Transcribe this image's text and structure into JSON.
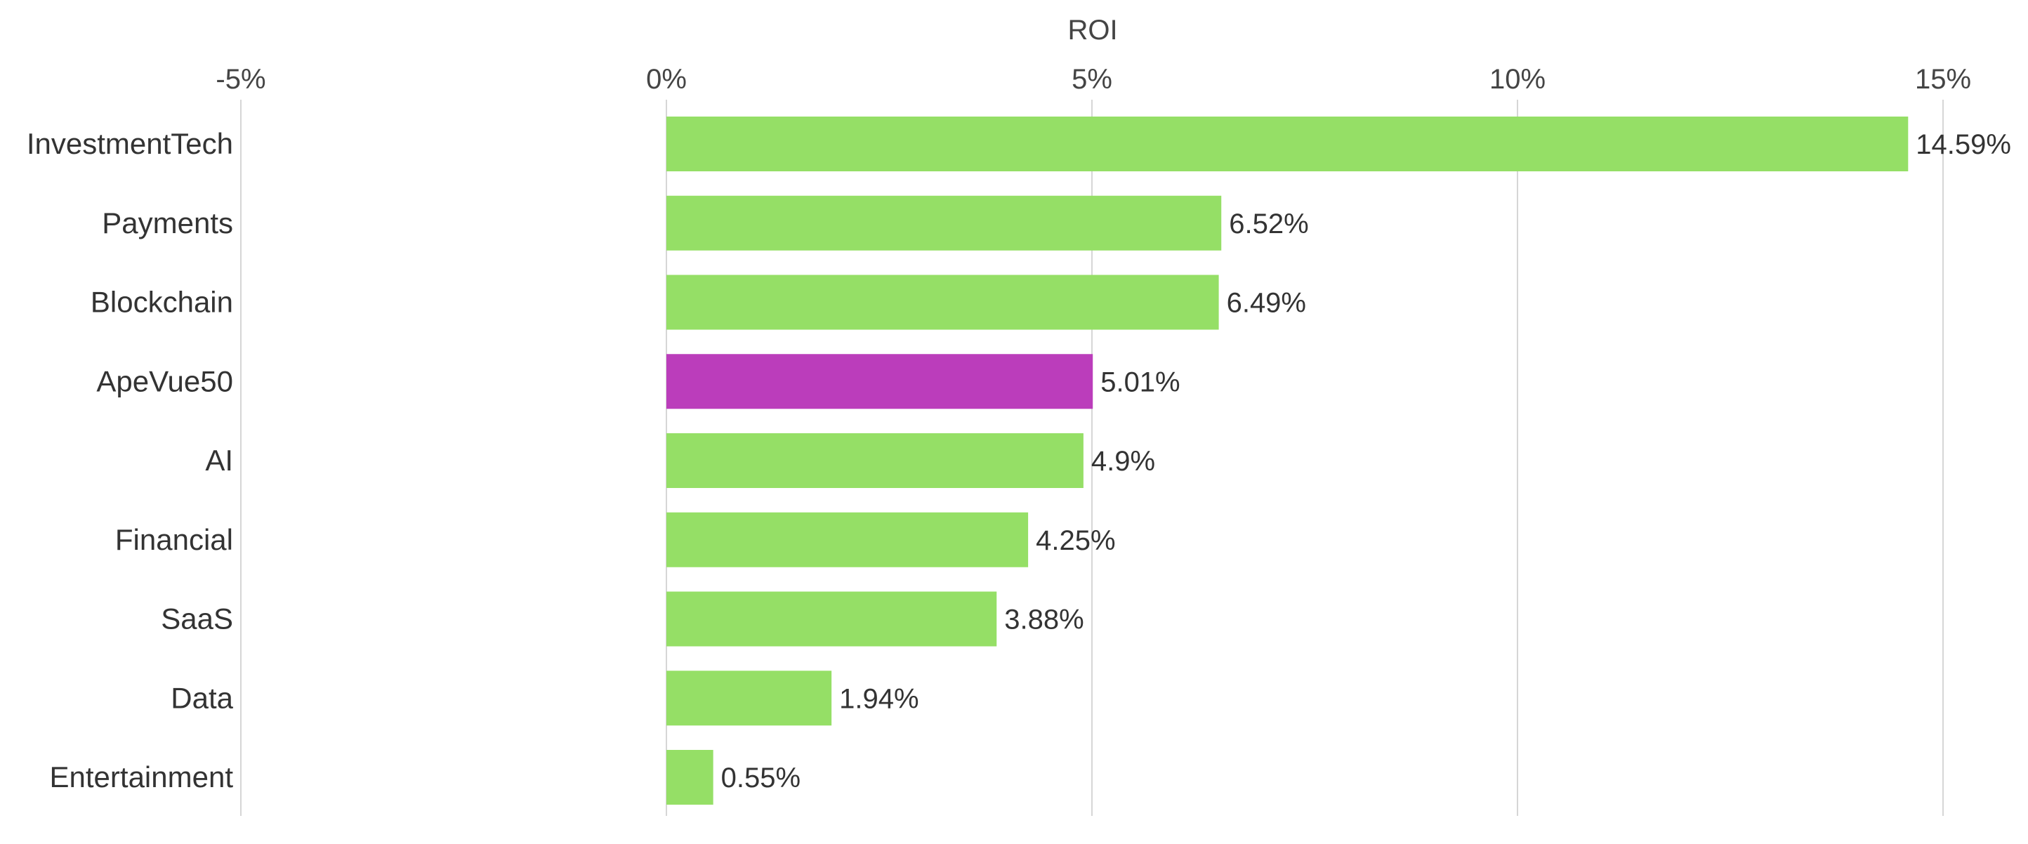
{
  "chart_data": {
    "type": "bar",
    "orientation": "horizontal",
    "x_axis_title": "ROI",
    "x_axis_position": "top",
    "xlim": [
      -5,
      15
    ],
    "x_ticks": [
      -5,
      0,
      5,
      10,
      15
    ],
    "x_tick_labels": [
      "-5%",
      "0%",
      "5%",
      "10%",
      "15%"
    ],
    "grid": true,
    "legend": "none",
    "categories": [
      "InvestmentTech",
      "Payments",
      "Blockchain",
      "ApeVue50",
      "AI",
      "Financial",
      "SaaS",
      "Data",
      "Entertainment"
    ],
    "values": [
      14.59,
      6.52,
      6.49,
      5.01,
      4.9,
      4.25,
      3.88,
      1.94,
      0.55
    ],
    "data_labels": [
      "14.59%",
      "6.52%",
      "6.49%",
      "5.01%",
      "4.9%",
      "4.25%",
      "3.88%",
      "1.94%",
      "0.55%"
    ],
    "highlight_category": "ApeVue50",
    "colors": {
      "bar": "#95df66",
      "highlight": "#bb3dbb",
      "grid": "#d6d6d6",
      "text": "#444444"
    }
  }
}
